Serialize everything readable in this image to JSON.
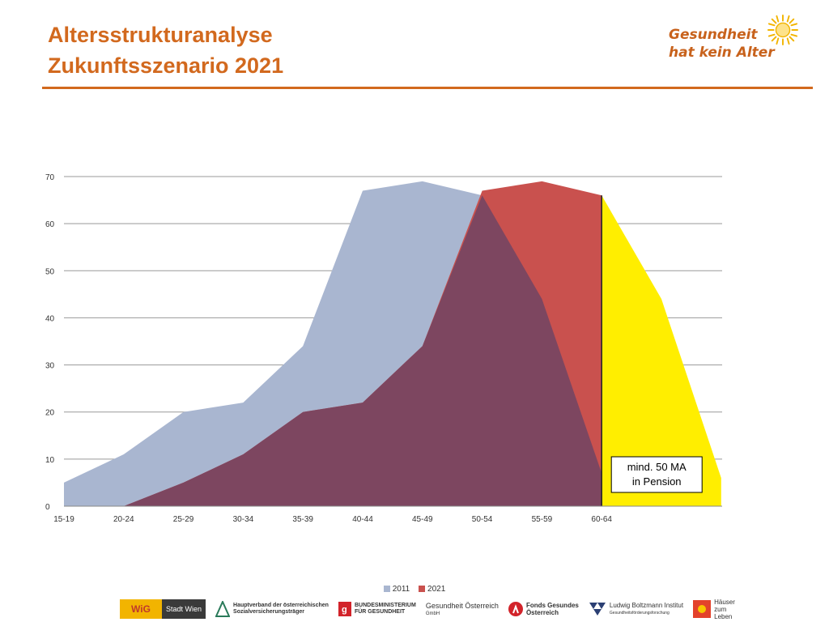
{
  "header": {
    "title_line1": "Altersstrukturanalyse",
    "title_line2": "Zukunftsszenario 2021",
    "brand_line1": "Gesundheit",
    "brand_line2": "hat kein Alter",
    "brand_icon": "sun-icon"
  },
  "colors": {
    "title": "#d2691e",
    "series_2011": "#a9b6d0",
    "series_2021": "#c9514e",
    "overlap": "#7d4660",
    "pension": "#ffee00"
  },
  "chart_data": {
    "type": "area",
    "categories": [
      "15-19",
      "20-24",
      "25-29",
      "30-34",
      "35-39",
      "40-44",
      "45-49",
      "50-54",
      "55-59",
      "60-64"
    ],
    "series": [
      {
        "name": "2011",
        "values": [
          5,
          11,
          20,
          22,
          34,
          67,
          69,
          66,
          44,
          7
        ]
      },
      {
        "name": "2021",
        "values": [
          0,
          0,
          5,
          11,
          20,
          22,
          34,
          67,
          69,
          66
        ]
      }
    ],
    "pension_projection": [
      66,
      44,
      6
    ],
    "annotation_line1": "mind. 50 MA",
    "annotation_line2": "in Pension",
    "ylim": [
      0,
      70
    ],
    "yticks": [
      0,
      10,
      20,
      30,
      40,
      50,
      60,
      70
    ],
    "grid": true,
    "legend_position": "bottom"
  },
  "footer": {
    "logos": [
      {
        "name": "wig",
        "text": "WiG"
      },
      {
        "name": "stadt-wien",
        "text": "Stadt Wien"
      },
      {
        "name": "hauptverband",
        "line1": "Hauptverband der österreichischen",
        "line2": "Sozialversicherungsträger"
      },
      {
        "name": "bundesministerium",
        "line1": "BUNDESMINISTERIUM",
        "line2": "FÜR GESUNDHEIT"
      },
      {
        "name": "gesundheit-oesterreich",
        "line1": "Gesundheit Österreich",
        "line2": "GmbH"
      },
      {
        "name": "fonds-gesundes",
        "line1": "Fonds Gesundes",
        "line2": "Österreich"
      },
      {
        "name": "ludwig-boltzmann",
        "line1": "Ludwig Boltzmann Institut",
        "line2": "Gesundheitsförderungsforschung"
      },
      {
        "name": "haeuser-zum-leben",
        "line1": "Häuser",
        "line2": "zum",
        "line3": "Leben"
      }
    ]
  }
}
